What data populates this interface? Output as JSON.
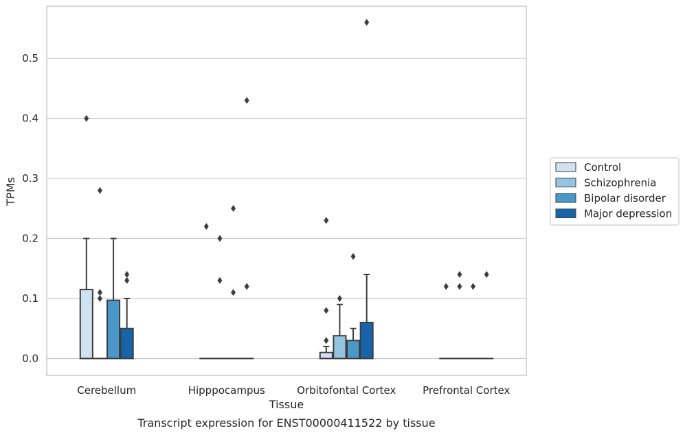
{
  "chart_data": {
    "type": "box",
    "title": "Transcript expression for ENST00000411522 by tissue",
    "xlabel": "Tissue",
    "ylabel": "TPMs",
    "ylim": [
      -0.028,
      0.587
    ],
    "yticks": [
      "0.0",
      "0.1",
      "0.2",
      "0.3",
      "0.4",
      "0.5"
    ],
    "categories": [
      "Cerebellum",
      "Hipppocampus",
      "Orbitofontal Cortex",
      "Prefrontal Cortex"
    ],
    "grid": true,
    "legend_position": "right",
    "series": [
      {
        "name": "Control",
        "color": "#d0e1f2",
        "boxes": [
          {
            "q1": 0.0,
            "median": 0.0,
            "q3": 0.115,
            "whisker_low": 0.0,
            "whisker_high": 0.2,
            "outliers": [
              0.4
            ]
          },
          {
            "q1": 0.0,
            "median": 0.0,
            "q3": 0.0,
            "whisker_low": 0.0,
            "whisker_high": 0.0,
            "outliers": [
              0.22
            ]
          },
          {
            "q1": 0.0,
            "median": 0.0,
            "q3": 0.01,
            "whisker_low": 0.0,
            "whisker_high": 0.02,
            "outliers": [
              0.03,
              0.08,
              0.23
            ]
          },
          {
            "q1": 0.0,
            "median": 0.0,
            "q3": 0.0,
            "whisker_low": 0.0,
            "whisker_high": 0.0,
            "outliers": [
              0.12
            ]
          }
        ]
      },
      {
        "name": "Schizophrenia",
        "color": "#94c4df",
        "boxes": [
          {
            "q1": 0.0,
            "median": 0.0,
            "q3": 0.0,
            "whisker_low": 0.0,
            "whisker_high": 0.0,
            "outliers": [
              0.1,
              0.11,
              0.28
            ]
          },
          {
            "q1": 0.0,
            "median": 0.0,
            "q3": 0.0,
            "whisker_low": 0.0,
            "whisker_high": 0.0,
            "outliers": [
              0.13,
              0.2
            ]
          },
          {
            "q1": 0.0,
            "median": 0.0,
            "q3": 0.038,
            "whisker_low": 0.0,
            "whisker_high": 0.09,
            "outliers": [
              0.1
            ]
          },
          {
            "q1": 0.0,
            "median": 0.0,
            "q3": 0.0,
            "whisker_low": 0.0,
            "whisker_high": 0.0,
            "outliers": [
              0.12,
              0.14
            ]
          }
        ]
      },
      {
        "name": "Bipolar disorder",
        "color": "#4a98c9",
        "boxes": [
          {
            "q1": 0.0,
            "median": 0.0,
            "q3": 0.097,
            "whisker_low": 0.0,
            "whisker_high": 0.2,
            "outliers": []
          },
          {
            "q1": 0.0,
            "median": 0.0,
            "q3": 0.0,
            "whisker_low": 0.0,
            "whisker_high": 0.0,
            "outliers": [
              0.11,
              0.25
            ]
          },
          {
            "q1": 0.0,
            "median": 0.0,
            "q3": 0.03,
            "whisker_low": 0.0,
            "whisker_high": 0.05,
            "outliers": [
              0.17
            ]
          },
          {
            "q1": 0.0,
            "median": 0.0,
            "q3": 0.0,
            "whisker_low": 0.0,
            "whisker_high": 0.0,
            "outliers": [
              0.12
            ]
          }
        ]
      },
      {
        "name": "Major depression",
        "color": "#1764ab",
        "boxes": [
          {
            "q1": 0.0,
            "median": 0.0,
            "q3": 0.05,
            "whisker_low": 0.0,
            "whisker_high": 0.1,
            "outliers": [
              0.13,
              0.14
            ]
          },
          {
            "q1": 0.0,
            "median": 0.0,
            "q3": 0.0,
            "whisker_low": 0.0,
            "whisker_high": 0.0,
            "outliers": [
              0.12,
              0.43
            ]
          },
          {
            "q1": 0.0,
            "median": 0.0,
            "q3": 0.06,
            "whisker_low": 0.0,
            "whisker_high": 0.14,
            "outliers": [
              0.56
            ]
          },
          {
            "q1": 0.0,
            "median": 0.0,
            "q3": 0.0,
            "whisker_low": 0.0,
            "whisker_high": 0.0,
            "outliers": [
              0.14
            ]
          }
        ]
      }
    ]
  }
}
